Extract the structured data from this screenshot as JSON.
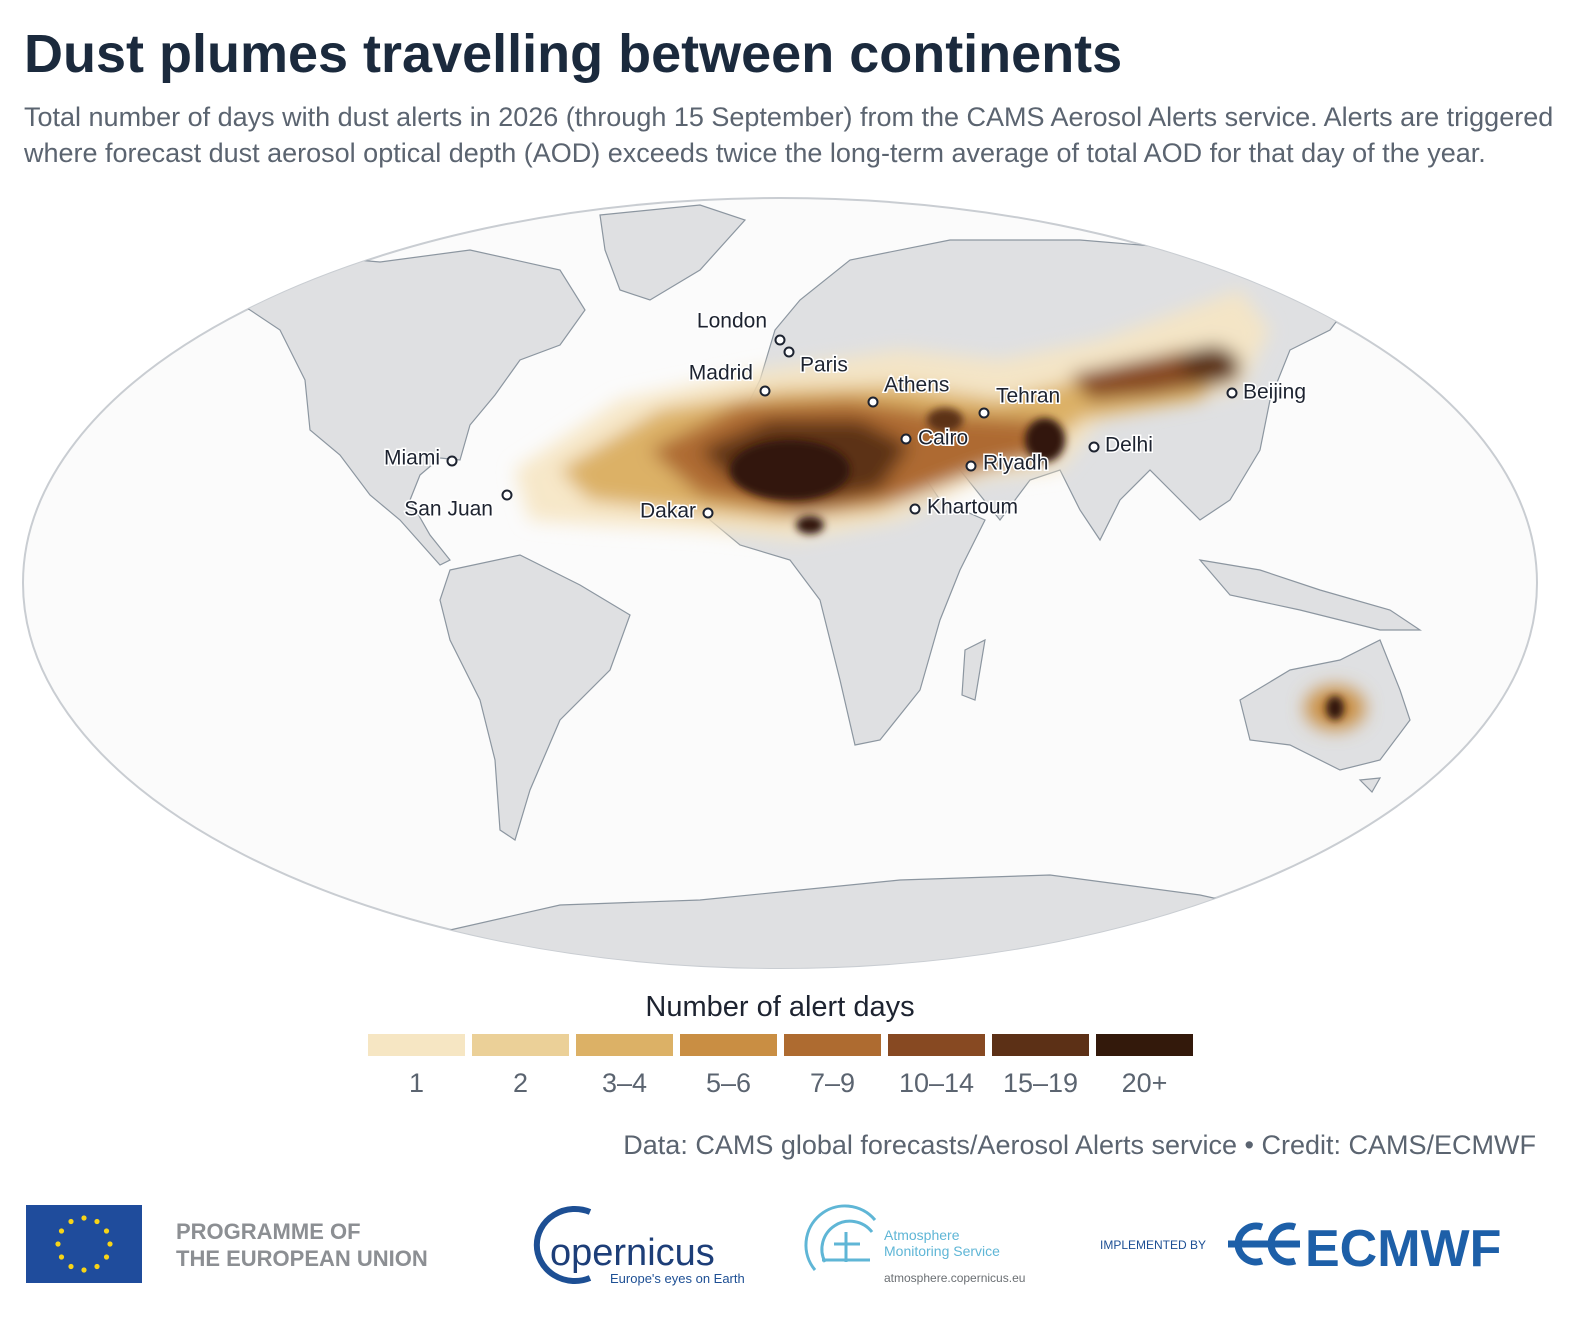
{
  "header": {
    "title": "Dust plumes travelling between continents",
    "subtitle": [
      "Total number of days with dust alerts in 2026 (through 15 September) from the CAMS Aerosol Alerts service. Alerts are triggered",
      "where forecast dust aerosol optical depth (AOD) exceeds twice the long-term average of total AOD for that day of the year."
    ]
  },
  "map": {
    "cities": [
      "London",
      "Paris",
      "Madrid",
      "Athens",
      "Tehran",
      "Beijing",
      "Cairo",
      "Riyadh",
      "Delhi",
      "Miami",
      "San Juan",
      "Dakar",
      "Khartoum"
    ]
  },
  "legend": {
    "title": "Number of alert days",
    "classes": [
      {
        "label": "1",
        "color": "#f6e6c3"
      },
      {
        "label": "2",
        "color": "#ebd098"
      },
      {
        "label": "3–4",
        "color": "#dcb166"
      },
      {
        "label": "5–6",
        "color": "#c98e43"
      },
      {
        "label": "7–9",
        "color": "#ae6b30"
      },
      {
        "label": "10–14",
        "color": "#874922"
      },
      {
        "label": "15–19",
        "color": "#5c3016"
      },
      {
        "label": "20+",
        "color": "#33190b"
      }
    ]
  },
  "credit": "Data: CAMS global forecasts/Aerosol Alerts service • Credit: CAMS/ECMWF",
  "footer": {
    "eu": [
      "PROGRAMME OF",
      "THE EUROPEAN UNION"
    ],
    "copernicus": {
      "name": "opernicus",
      "tagline": "Europe's eyes on Earth"
    },
    "cams": {
      "name": [
        "Atmosphere",
        "Monitoring Service"
      ],
      "url": "atmosphere.copernicus.eu"
    },
    "implemented": "IMPLEMENTED BY",
    "ecmwf": "ECMWF"
  }
}
